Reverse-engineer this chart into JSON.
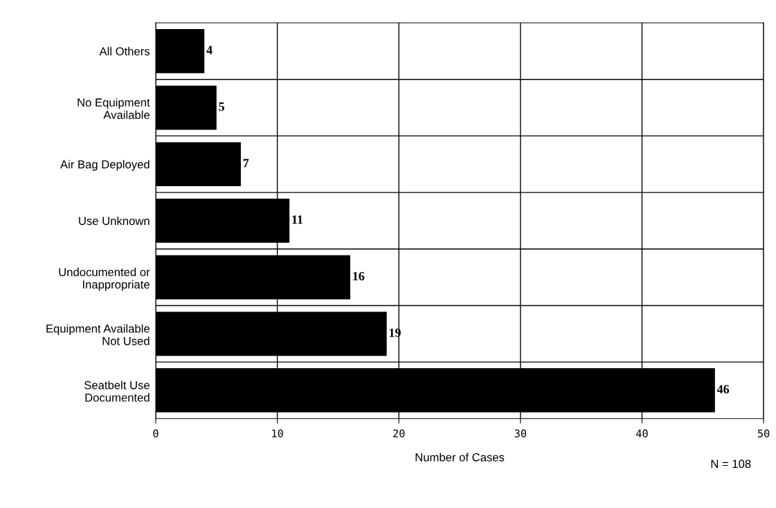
{
  "chart_data": {
    "type": "bar",
    "orientation": "horizontal",
    "categories": [
      "All Others",
      "No Equipment\nAvailable",
      "Air Bag Deployed",
      "Use Unknown",
      "Undocumented or\nInappropriate",
      "Equipment Available\nNot Used",
      "Seatbelt Use\nDocumented"
    ],
    "values": [
      4,
      5,
      7,
      11,
      16,
      19,
      46
    ],
    "color": "#000000",
    "xlim": [
      0,
      50
    ],
    "xticks": [
      0,
      10,
      20,
      30,
      40,
      50
    ],
    "xlabel": "Number of Cases",
    "grid": true,
    "data_labels": true,
    "annotations": [
      "N = 108"
    ]
  }
}
